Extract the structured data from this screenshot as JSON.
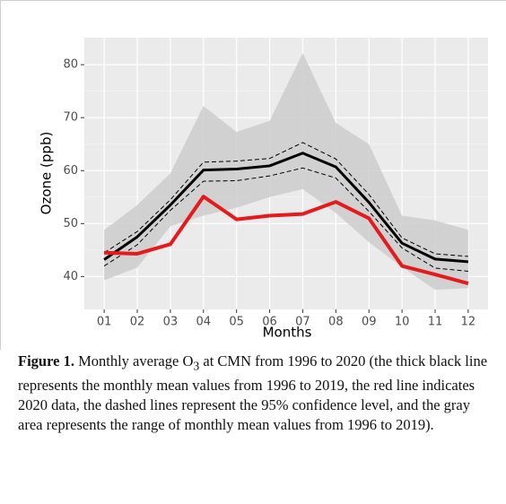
{
  "chart_data": {
    "type": "line",
    "categories": [
      "01",
      "02",
      "03",
      "04",
      "05",
      "06",
      "07",
      "08",
      "09",
      "10",
      "11",
      "12"
    ],
    "range": {
      "color": "#cdcdcd",
      "upper": [
        48.8,
        53.5,
        59.5,
        72.2,
        67.3,
        69.4,
        82.2,
        69,
        65,
        51.5,
        50.6,
        48.8
      ],
      "lower": [
        39.3,
        41.7,
        49.5,
        51.5,
        53,
        55,
        56.5,
        52,
        46.5,
        41.8,
        37.5,
        37.8
      ]
    },
    "series": [
      {
        "color": "#000000",
        "dashed": true,
        "values": [
          44.5,
          48.5,
          54.5,
          61.6,
          61.8,
          62.3,
          65.3,
          62.2,
          55.5,
          47.3,
          44.3,
          43.8
        ]
      },
      {
        "color": "#000000",
        "dashed": true,
        "values": [
          42,
          46,
          52.5,
          58,
          58.1,
          59,
          60.5,
          58.6,
          52.3,
          45.4,
          41.6,
          41
        ]
      },
      {
        "color": "#000000",
        "dashed": false,
        "values": [
          43.2,
          47.5,
          53.5,
          60.1,
          60.3,
          60.9,
          63.3,
          60.7,
          54,
          46.3,
          43.3,
          42.8
        ]
      },
      {
        "color": "#e41a1c",
        "dashed": false,
        "values": [
          44.5,
          44.3,
          46.1,
          55.1,
          50.8,
          51.5,
          51.8,
          54.1,
          51,
          42,
          40.4,
          38.7
        ]
      }
    ],
    "xlabel": "Months",
    "ylabel": "Ozone (ppb)",
    "ylim": [
      33.8,
      85.1
    ],
    "yticks": [
      40,
      50,
      60,
      70,
      80
    ],
    "grid": true,
    "caption": {
      "label": "Figure 1.",
      "text_before": " Monthly average O",
      "subscript": "3",
      "text_after": " at CMN from 1996 to 2020 (the thick black line represents the monthly mean values from 1996 to 2019, the red line indicates 2020 data, the dashed lines represent the 95% confidence level, and the gray area represents the range of monthly mean values from 1996 to 2019)."
    }
  }
}
